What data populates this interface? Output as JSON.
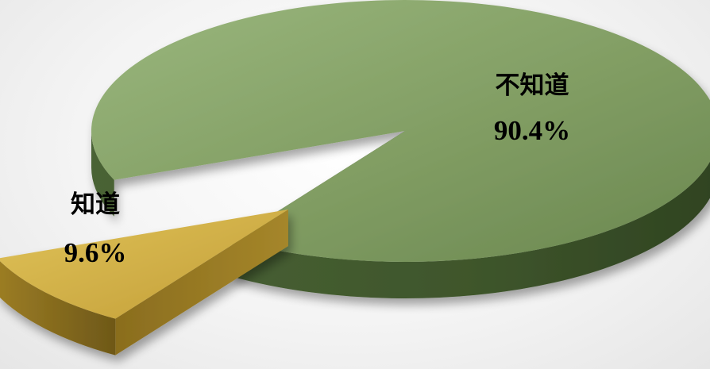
{
  "chart_data": {
    "type": "pie",
    "style": "3d-exploded",
    "categories": [
      "不知道",
      "知道"
    ],
    "values": [
      90.4,
      9.6
    ],
    "slices": [
      {
        "label": "不知道",
        "value": 90.4,
        "value_label": "90.4%",
        "color": "#7e9a5e"
      },
      {
        "label": "知道",
        "value": 9.6,
        "value_label": "9.6%",
        "color": "#c9a640"
      }
    ],
    "title": "",
    "legend": "none"
  }
}
